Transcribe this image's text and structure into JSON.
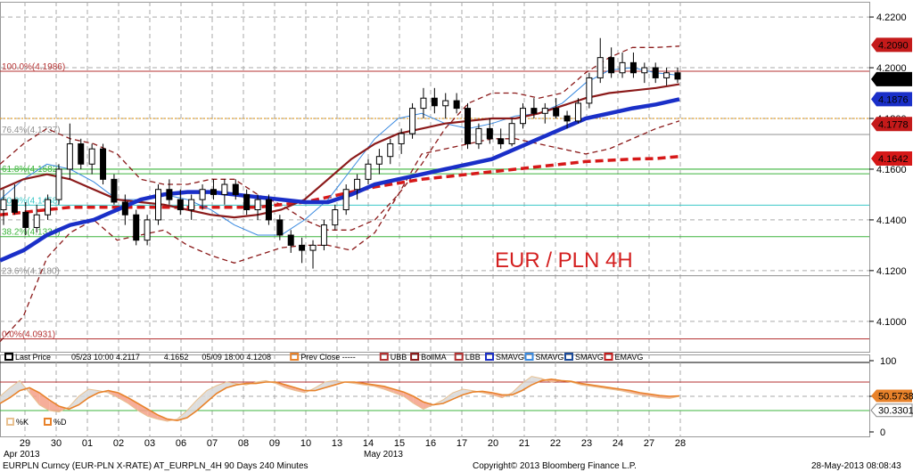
{
  "chart_data": {
    "type": "candlestick",
    "title": "EUR / PLN 4H",
    "price_axis": {
      "ylim": [
        4.088,
        4.226
      ],
      "ticks": [
        4.22,
        4.2,
        4.18,
        4.16,
        4.14,
        4.12,
        4.1
      ]
    },
    "x_tick_labels": [
      "29",
      "30",
      "01",
      "02",
      "03",
      "06",
      "07",
      "08",
      "09",
      "10",
      "13",
      "14",
      "15",
      "16",
      "17",
      "20",
      "21",
      "22",
      "23",
      "24",
      "27",
      "28"
    ],
    "x_period_labels": [
      "Apr 2013",
      "May 2013"
    ],
    "price_tags": [
      {
        "label": "4.2090",
        "value": 4.209,
        "color": "#c41a1a"
      },
      {
        "label": "4.1955",
        "value": 4.1955,
        "color": "#000000"
      },
      {
        "label": "4.1876",
        "value": 4.1876,
        "color": "#1a2fc8"
      },
      {
        "label": "4.1778",
        "value": 4.1778,
        "color": "#c41a1a"
      },
      {
        "label": "4.1642",
        "value": 4.1642,
        "color": "#d61818"
      }
    ],
    "fib_levels": [
      {
        "label": "100.0%(4.1986)",
        "value": 4.1986,
        "color": "#b43232"
      },
      {
        "label": "76.4%(4.1737)",
        "value": 4.1737,
        "color": "#909090"
      },
      {
        "label": "61.8%(4.1582)",
        "value": 4.1582,
        "color": "#3cb43c"
      },
      {
        "label": "50.0%(4.1458)",
        "value": 4.1458,
        "color": "#3cc8c8"
      },
      {
        "label": "38.2%(4.1334)",
        "value": 4.1334,
        "color": "#3cb43c"
      },
      {
        "label": "23.6%(4.1180)",
        "value": 4.118,
        "color": "#909090"
      },
      {
        "label": "0.0%(4.0931)",
        "value": 4.0931,
        "color": "#b43232"
      }
    ],
    "extra_levels": [
      {
        "value": 4.18,
        "color": "#e0a030",
        "style": "dotted"
      },
      {
        "value": 4.16,
        "color": "#3cb43c",
        "style": "solid"
      }
    ],
    "legend": [
      {
        "label": "Last Price",
        "color": "#000000"
      },
      {
        "label": "05/23 10:00 4.2117",
        "color": ""
      },
      {
        "label": "4.1652",
        "color": ""
      },
      {
        "label": "05/09 18:00 4.1208",
        "color": ""
      },
      {
        "label": "Prev Close -----",
        "color": "#e8822a"
      },
      {
        "label": "UBB",
        "color": "#b43232"
      },
      {
        "label": "BollMA",
        "color": "#8b1a1a"
      },
      {
        "label": "LBB",
        "color": "#b43232"
      },
      {
        "label": "SMAVG",
        "color": "#1a2fc8"
      },
      {
        "label": "SMAVG",
        "color": "#3a8ae0"
      },
      {
        "label": "SMAVG",
        "color": "#1a4a9a"
      },
      {
        "label": "EMAVG",
        "color": "#c41a1a"
      }
    ],
    "candles": [
      [
        4.144,
        4.152,
        4.138,
        4.148
      ],
      [
        4.148,
        4.154,
        4.142,
        4.143
      ],
      [
        4.143,
        4.147,
        4.134,
        4.137
      ],
      [
        4.137,
        4.146,
        4.135,
        4.142
      ],
      [
        4.142,
        4.15,
        4.14,
        4.148
      ],
      [
        4.148,
        4.162,
        4.146,
        4.16
      ],
      [
        4.16,
        4.178,
        4.156,
        4.17
      ],
      [
        4.17,
        4.172,
        4.16,
        4.162
      ],
      [
        4.162,
        4.17,
        4.158,
        4.168
      ],
      [
        4.168,
        4.17,
        4.154,
        4.156
      ],
      [
        4.156,
        4.158,
        4.146,
        4.147
      ],
      [
        4.147,
        4.15,
        4.138,
        4.142
      ],
      [
        4.142,
        4.144,
        4.13,
        4.132
      ],
      [
        4.132,
        4.142,
        4.13,
        4.14
      ],
      [
        4.14,
        4.154,
        4.138,
        4.152
      ],
      [
        4.152,
        4.156,
        4.146,
        4.148
      ],
      [
        4.148,
        4.152,
        4.142,
        4.144
      ],
      [
        4.144,
        4.15,
        4.14,
        4.148
      ],
      [
        4.148,
        4.154,
        4.144,
        4.152
      ],
      [
        4.152,
        4.156,
        4.148,
        4.15
      ],
      [
        4.15,
        4.156,
        4.146,
        4.154
      ],
      [
        4.154,
        4.156,
        4.148,
        4.15
      ],
      [
        4.15,
        4.152,
        4.142,
        4.144
      ],
      [
        4.144,
        4.15,
        4.14,
        4.148
      ],
      [
        4.148,
        4.15,
        4.138,
        4.14
      ],
      [
        4.14,
        4.142,
        4.132,
        4.134
      ],
      [
        4.134,
        4.136,
        4.127,
        4.13
      ],
      [
        4.13,
        4.133,
        4.123,
        4.128
      ],
      [
        4.128,
        4.132,
        4.1208,
        4.13
      ],
      [
        4.13,
        4.14,
        4.128,
        4.138
      ],
      [
        4.138,
        4.146,
        4.136,
        4.144
      ],
      [
        4.144,
        4.154,
        4.142,
        4.152
      ],
      [
        4.152,
        4.158,
        4.148,
        4.156
      ],
      [
        4.156,
        4.164,
        4.154,
        4.162
      ],
      [
        4.162,
        4.168,
        4.158,
        4.165
      ],
      [
        4.165,
        4.172,
        4.162,
        4.17
      ],
      [
        4.17,
        4.176,
        4.166,
        4.174
      ],
      [
        4.174,
        4.186,
        4.172,
        4.184
      ],
      [
        4.184,
        4.192,
        4.18,
        4.188
      ],
      [
        4.188,
        4.192,
        4.182,
        4.185
      ],
      [
        4.185,
        4.19,
        4.18,
        4.187
      ],
      [
        4.187,
        4.19,
        4.182,
        4.184
      ],
      [
        4.184,
        4.186,
        4.168,
        4.17
      ],
      [
        4.17,
        4.178,
        4.168,
        4.176
      ],
      [
        4.176,
        4.18,
        4.17,
        4.172
      ],
      [
        4.172,
        4.176,
        4.168,
        4.17
      ],
      [
        4.17,
        4.18,
        4.169,
        4.178
      ],
      [
        4.178,
        4.186,
        4.176,
        4.184
      ],
      [
        4.184,
        4.188,
        4.18,
        4.182
      ],
      [
        4.182,
        4.186,
        4.178,
        4.184
      ],
      [
        4.184,
        4.188,
        4.18,
        4.181
      ],
      [
        4.181,
        4.183,
        4.176,
        4.179
      ],
      [
        4.179,
        4.188,
        4.178,
        4.186
      ],
      [
        4.186,
        4.198,
        4.184,
        4.196
      ],
      [
        4.196,
        4.2117,
        4.194,
        4.204
      ],
      [
        4.204,
        4.208,
        4.196,
        4.198
      ],
      [
        4.198,
        4.206,
        4.196,
        4.202
      ],
      [
        4.202,
        4.206,
        4.196,
        4.198
      ],
      [
        4.198,
        4.202,
        4.194,
        4.2
      ],
      [
        4.2,
        4.202,
        4.194,
        4.196
      ],
      [
        4.196,
        4.2,
        4.193,
        4.198
      ],
      [
        4.198,
        4.2,
        4.194,
        4.1955
      ]
    ],
    "boll_upper": [
      4.162,
      4.17,
      4.176,
      4.172,
      4.17,
      4.166,
      4.156,
      4.154,
      4.154,
      4.156,
      4.156,
      4.15,
      4.146,
      4.14,
      4.136,
      4.136,
      4.14,
      4.15,
      4.162,
      4.176,
      4.186,
      4.19,
      4.19,
      4.188,
      4.19,
      4.198,
      4.204,
      4.208,
      4.208,
      4.2085
    ],
    "boll_mid": [
      4.152,
      4.156,
      4.158,
      4.156,
      4.152,
      4.148,
      4.147,
      4.146,
      4.144,
      4.142,
      4.141,
      4.142,
      4.144,
      4.148,
      4.156,
      4.164,
      4.17,
      4.174,
      4.176,
      4.178,
      4.179,
      4.18,
      4.18,
      4.182,
      4.185,
      4.188,
      4.19,
      4.191,
      4.192,
      4.1935
    ],
    "boll_lower": [
      4.092,
      4.102,
      4.125,
      4.135,
      4.14,
      4.132,
      4.134,
      4.136,
      4.13,
      4.126,
      4.123,
      4.126,
      4.129,
      4.13,
      4.13,
      4.128,
      4.135,
      4.15,
      4.166,
      4.168,
      4.17,
      4.172,
      4.172,
      4.17,
      4.168,
      4.166,
      4.168,
      4.172,
      4.176,
      4.179
    ],
    "sma_blue_thick": [
      4.124,
      4.128,
      4.134,
      4.138,
      4.14,
      4.144,
      4.148,
      4.15,
      4.151,
      4.151,
      4.15,
      4.149,
      4.148,
      4.147,
      4.147,
      4.15,
      4.154,
      4.156,
      4.158,
      4.16,
      4.162,
      4.164,
      4.168,
      4.172,
      4.176,
      4.18,
      4.182,
      4.184,
      4.1855,
      4.1876
    ],
    "sma_light_blue": [
      4.148,
      4.156,
      4.162,
      4.16,
      4.155,
      4.148,
      4.148,
      4.15,
      4.148,
      4.144,
      4.138,
      4.134,
      4.134,
      4.14,
      4.148,
      4.16,
      4.172,
      4.18,
      4.182,
      4.178,
      4.176,
      4.178,
      4.181,
      4.182,
      4.186,
      4.194,
      4.199,
      4.2,
      4.198,
      4.197
    ],
    "ema_red_dashed": [
      4.142,
      4.143,
      4.144,
      4.145,
      4.145,
      4.145,
      4.145,
      4.145,
      4.145,
      4.145,
      4.145,
      4.145,
      4.146,
      4.147,
      4.149,
      4.151,
      4.153,
      4.1545,
      4.156,
      4.157,
      4.158,
      4.159,
      4.16,
      4.161,
      4.162,
      4.163,
      4.1635,
      4.164,
      4.1642,
      4.165
    ],
    "oscillator": {
      "ylim": [
        0,
        100
      ],
      "ticks": [
        "100",
        "50",
        "0"
      ],
      "tags": [
        {
          "label": "50.5738",
          "value": 50.5738,
          "color": "#e8822a"
        },
        {
          "label": "30.3301",
          "value": 30.3301,
          "color": "#666666"
        }
      ],
      "levels": [
        {
          "value": 70,
          "color": "#b43232"
        },
        {
          "value": 30,
          "color": "#3cb43c"
        }
      ],
      "legend": [
        "%K",
        "%D"
      ],
      "k_line": [
        50,
        62,
        72,
        55,
        38,
        30,
        28,
        35,
        50,
        60,
        58,
        55,
        48,
        40,
        30,
        22,
        18,
        15,
        18,
        30,
        45,
        58,
        65,
        70,
        68,
        66,
        70,
        72,
        68,
        62,
        58,
        55,
        62,
        70,
        72,
        70,
        68,
        66,
        64,
        60,
        55,
        50,
        40,
        32,
        38,
        45,
        55,
        60,
        58,
        55,
        52,
        48,
        55,
        68,
        78,
        75,
        70,
        72,
        70,
        66,
        64,
        62,
        60,
        58,
        55,
        52,
        50,
        48,
        47,
        50
      ],
      "d_line": [
        40,
        48,
        58,
        62,
        55,
        45,
        36,
        32,
        38,
        48,
        55,
        58,
        55,
        48,
        40,
        32,
        24,
        18,
        16,
        20,
        30,
        42,
        54,
        62,
        66,
        68,
        68,
        70,
        70,
        66,
        62,
        58,
        58,
        62,
        66,
        70,
        70,
        68,
        66,
        64,
        60,
        56,
        50,
        42,
        38,
        40,
        46,
        52,
        56,
        57,
        55,
        52,
        52,
        58,
        66,
        72,
        74,
        72,
        71,
        68,
        66,
        64,
        62,
        60,
        58,
        55,
        53,
        51,
        50,
        50.57
      ]
    }
  },
  "footer": {
    "left": "EURPLN Curncy (EUR-PLN X-RATE) AT_EURPLN_4H 90 Days 240 Minutes",
    "center": "Copyright© 2013 Bloomberg Finance L.P.",
    "right": "28-May-2013 08:08:43"
  }
}
